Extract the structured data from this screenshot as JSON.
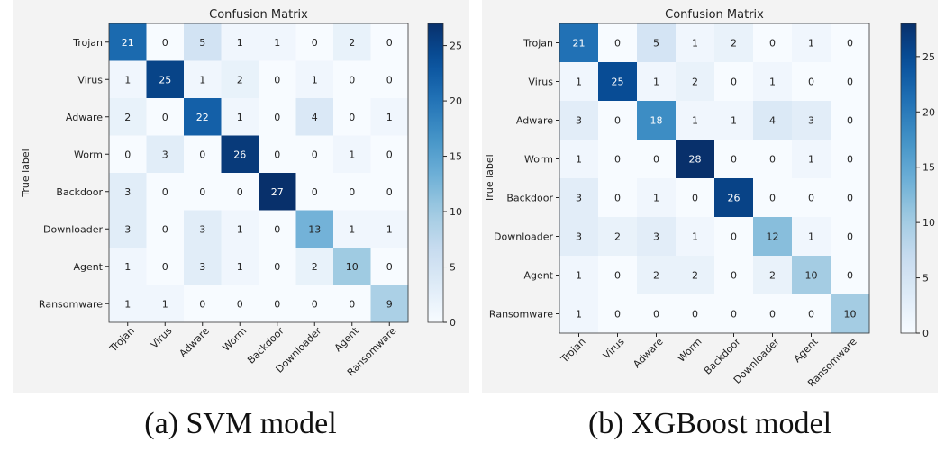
{
  "chart_data": [
    {
      "type": "heatmap",
      "title": "Confusion Matrix",
      "ylabel": "True label",
      "caption": "(a) SVM model",
      "labels": [
        "Trojan",
        "Virus",
        "Adware",
        "Worm",
        "Backdoor",
        "Downloader",
        "Agent",
        "Ransomware"
      ],
      "matrix": [
        [
          21,
          0,
          5,
          1,
          1,
          0,
          2,
          0
        ],
        [
          1,
          25,
          1,
          2,
          0,
          1,
          0,
          0
        ],
        [
          2,
          0,
          22,
          1,
          0,
          4,
          0,
          1
        ],
        [
          0,
          3,
          0,
          26,
          0,
          0,
          1,
          0
        ],
        [
          3,
          0,
          0,
          0,
          27,
          0,
          0,
          0
        ],
        [
          3,
          0,
          3,
          1,
          0,
          13,
          1,
          1
        ],
        [
          1,
          0,
          3,
          1,
          0,
          2,
          10,
          0
        ],
        [
          1,
          1,
          0,
          0,
          0,
          0,
          0,
          9
        ]
      ],
      "colorbar": {
        "vmin": 0,
        "vmax": 27,
        "ticks": [
          0,
          5,
          10,
          15,
          20,
          25
        ]
      },
      "colormap": "Blues"
    },
    {
      "type": "heatmap",
      "title": "Confusion Matrix",
      "ylabel": "True label",
      "caption": "(b) XGBoost model",
      "labels": [
        "Trojan",
        "Virus",
        "Adware",
        "Worm",
        "Backdoor",
        "Downloader",
        "Agent",
        "Ransomware"
      ],
      "matrix": [
        [
          21,
          0,
          5,
          1,
          2,
          0,
          1,
          0
        ],
        [
          1,
          25,
          1,
          2,
          0,
          1,
          0,
          0
        ],
        [
          3,
          0,
          18,
          1,
          1,
          4,
          3,
          0
        ],
        [
          1,
          0,
          0,
          28,
          0,
          0,
          1,
          0
        ],
        [
          3,
          0,
          1,
          0,
          26,
          0,
          0,
          0
        ],
        [
          3,
          2,
          3,
          1,
          0,
          12,
          1,
          0
        ],
        [
          1,
          0,
          2,
          2,
          0,
          2,
          10,
          0
        ],
        [
          1,
          0,
          0,
          0,
          0,
          0,
          0,
          10
        ]
      ],
      "colorbar": {
        "vmin": 0,
        "vmax": 28,
        "ticks": [
          0,
          5,
          10,
          15,
          20,
          25
        ]
      },
      "colormap": "Blues"
    }
  ]
}
